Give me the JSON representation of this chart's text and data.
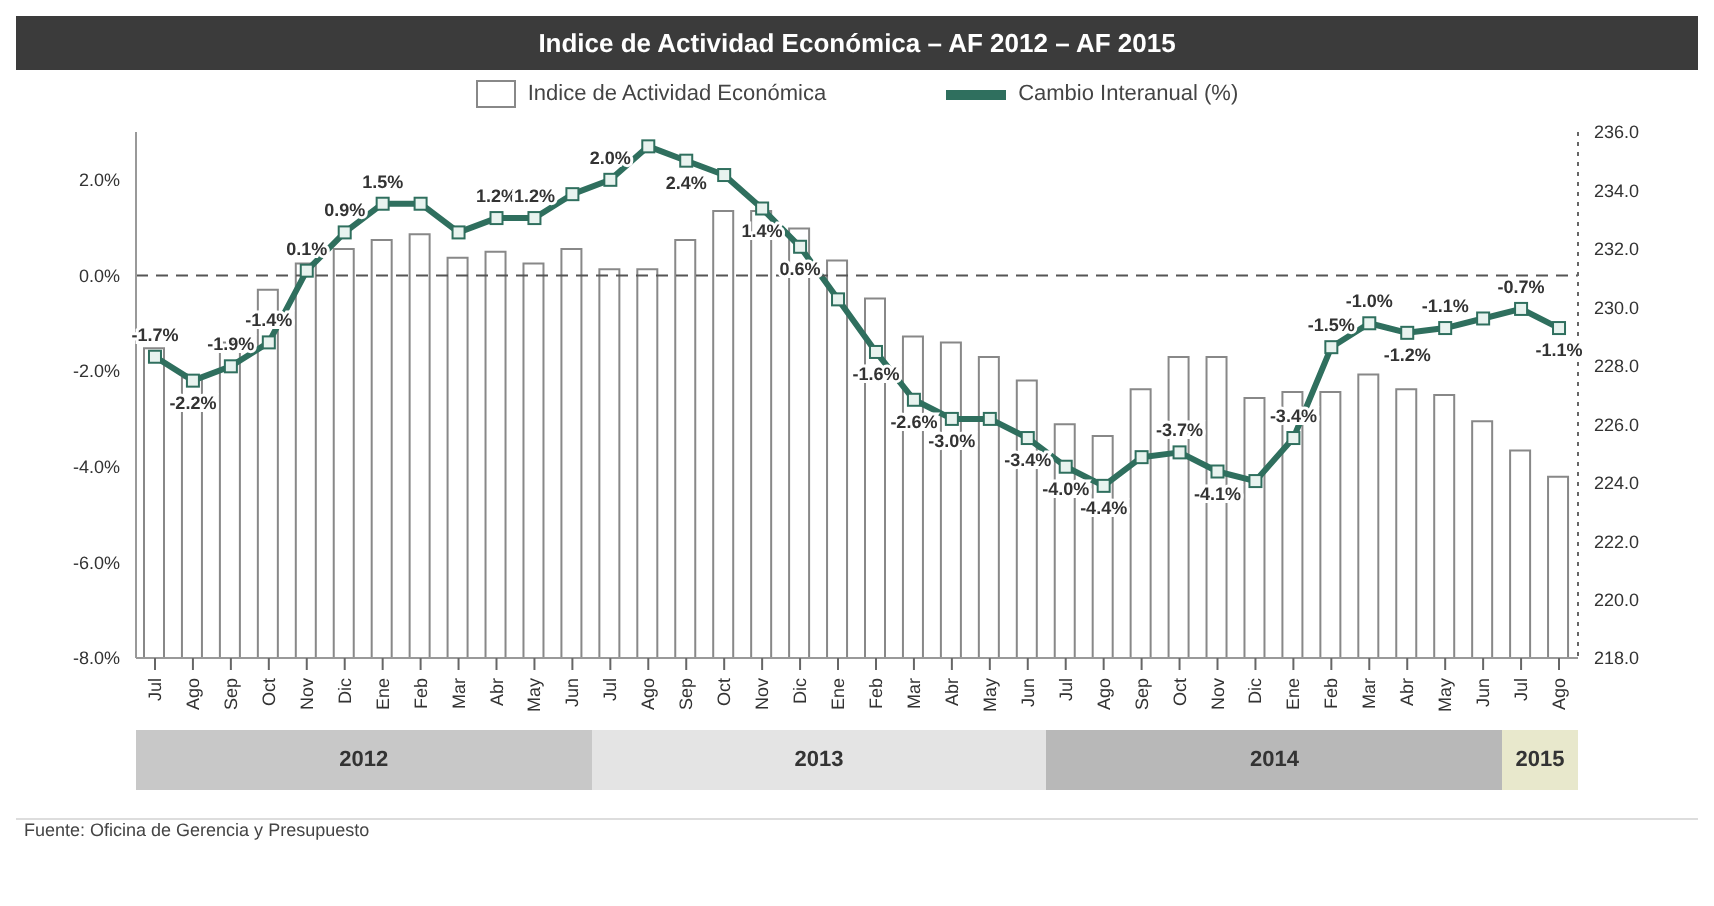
{
  "chart_data": {
    "type": "bar",
    "title": "Indice de Actividad Económica – AF 2012 – AF 2015",
    "categories": [
      "Jul",
      "Ago",
      "Sep",
      "Oct",
      "Nov",
      "Dic",
      "Ene",
      "Feb",
      "Mar",
      "Abr",
      "May",
      "Jun",
      "Jul",
      "Ago",
      "Sep",
      "Oct",
      "Nov",
      "Dic",
      "Ene",
      "Feb",
      "Mar",
      "Abr",
      "May",
      "Jun",
      "Jul",
      "Ago",
      "Sep",
      "Oct",
      "Nov",
      "Dic",
      "Ene",
      "Feb",
      "Mar",
      "Abr",
      "May",
      "Jun",
      "Jul",
      "Ago"
    ],
    "series": [
      {
        "name": "Indice de Actividad Económica",
        "axis": "y2",
        "color": "#ffffff",
        "values": [
          228.6,
          227.6,
          228.8,
          230.6,
          231.5,
          232.0,
          232.3,
          232.5,
          231.7,
          231.9,
          231.5,
          232.0,
          231.3,
          231.3,
          232.3,
          233.3,
          233.3,
          232.7,
          231.6,
          230.3,
          229.0,
          228.8,
          228.3,
          227.5,
          226.0,
          225.6,
          227.2,
          228.3,
          228.3,
          226.9,
          227.1,
          227.1,
          227.7,
          227.2,
          227.0,
          226.1,
          225.1,
          224.2
        ]
      },
      {
        "name": "Cambio Interanual (%)",
        "type": "line",
        "axis": "y",
        "color": "#2f6f5e",
        "marker": "square",
        "values": [
          -1.7,
          -2.2,
          -1.9,
          -1.4,
          0.1,
          0.9,
          1.5,
          1.5,
          0.9,
          1.2,
          1.2,
          1.7,
          2.0,
          2.7,
          2.4,
          2.1,
          1.4,
          0.6,
          -0.5,
          -1.6,
          -2.6,
          -3.0,
          -3.0,
          -3.4,
          -4.0,
          -4.4,
          -3.8,
          -3.7,
          -4.1,
          -4.3,
          -3.4,
          -1.5,
          -1.0,
          -1.2,
          -1.1,
          -0.9,
          -0.7,
          -1.1
        ],
        "value_labels": [
          "-1.7%",
          "-2.2%",
          "-1.9%",
          "-1.4%",
          "0.1%",
          "0.9%",
          "1.5%",
          null,
          null,
          "1.2%",
          "1.2%",
          null,
          "2.0%",
          null,
          "2.4%",
          null,
          "1.4%",
          "0.6%",
          null,
          "-1.6%",
          "-2.6%",
          "-3.0%",
          null,
          "-3.4%",
          "-4.0%",
          "-4.4%",
          null,
          "-3.7%",
          "-4.1%",
          null,
          "-3.4%",
          "-1.5%",
          "-1.0%",
          "-1.2%",
          "-1.1%",
          null,
          "-0.7%",
          "-1.1%"
        ]
      }
    ],
    "ylim": [
      -8,
      3
    ],
    "yticks": [
      {
        "value": 2,
        "label": "2.0%"
      },
      {
        "value": 0,
        "label": "0.0%"
      },
      {
        "value": -2,
        "label": "-2.0%"
      },
      {
        "value": -4,
        "label": "-4.0%"
      },
      {
        "value": -6,
        "label": "-6.0%"
      },
      {
        "value": -8,
        "label": "-8.0%"
      }
    ],
    "y2lim": [
      218,
      236
    ],
    "y2ticks": [
      {
        "value": 236,
        "label": "236.0"
      },
      {
        "value": 234,
        "label": "234.0"
      },
      {
        "value": 232,
        "label": "232.0"
      },
      {
        "value": 230,
        "label": "230.0"
      },
      {
        "value": 228,
        "label": "228.0"
      },
      {
        "value": 226,
        "label": "226.0"
      },
      {
        "value": 224,
        "label": "224.0"
      },
      {
        "value": 222,
        "label": "222.0"
      },
      {
        "value": 220,
        "label": "220.0"
      },
      {
        "value": 218,
        "label": "218.0"
      }
    ],
    "ref_lines": [
      {
        "axis": "y",
        "value": 0,
        "color": "#555555",
        "line_style": "dashed"
      }
    ],
    "legend": "top",
    "grid": false,
    "annotations": [
      "2012",
      "2013",
      "2014",
      "2015",
      "Fuente: Oficina de Gerencia y Presupuesto"
    ]
  }
}
